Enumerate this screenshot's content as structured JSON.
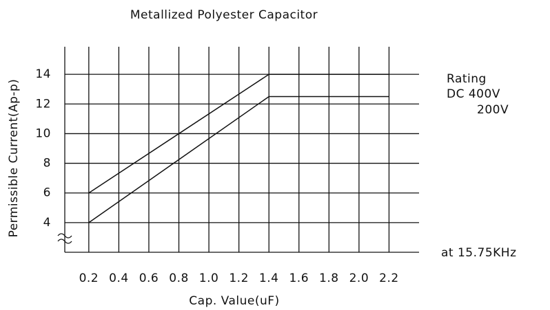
{
  "chart_data": {
    "type": "line",
    "title": "Metallized Polyester Capacitor",
    "x_label": "Cap. Value(uF)",
    "y_label": "Permissible Current(Ap-p)",
    "x": [
      0.2,
      1.4,
      2.2
    ],
    "series": [
      {
        "name": "DC 400V",
        "color": "#111111",
        "values": [
          6,
          14,
          14
        ]
      },
      {
        "name": "200V",
        "color": "#111111",
        "values": [
          4,
          12.5,
          12.5
        ]
      }
    ],
    "legend_title": "Rating",
    "annotation": "at 15.75KHz",
    "xlim": [
      0.04,
      2.4
    ],
    "xticks": [
      0.2,
      0.4,
      0.6,
      0.8,
      {
        "value": 1,
        "label": "1.0"
      },
      1.2,
      1.4,
      1.6,
      1.8,
      {
        "value": 2,
        "label": "2.0"
      },
      2.2
    ],
    "ylim": [
      2,
      16
    ],
    "yticks": [
      4,
      6,
      8,
      10,
      12,
      14
    ],
    "grid": true
  }
}
